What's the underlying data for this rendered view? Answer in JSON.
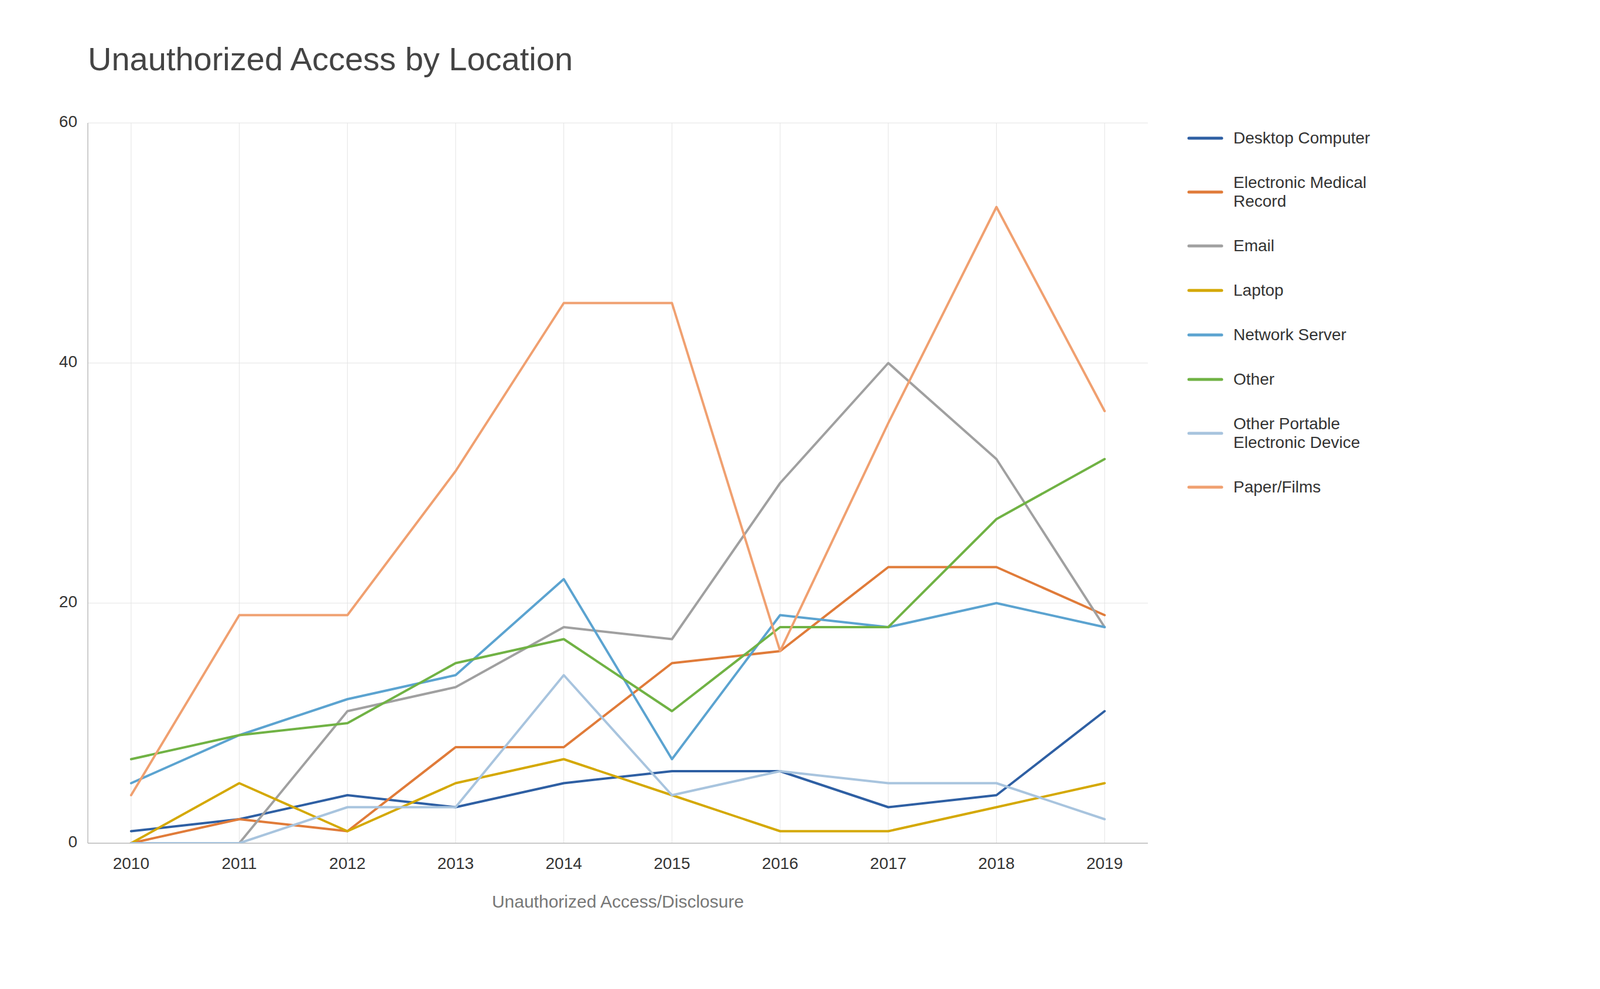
{
  "chart_data": {
    "type": "line",
    "title": "Unauthorized Access by Location",
    "xlabel": "Unauthorized Access/Disclosure",
    "x": [
      2010,
      2011,
      2012,
      2013,
      2014,
      2015,
      2016,
      2017,
      2018,
      2019
    ],
    "series": [
      {
        "name": "Desktop Computer",
        "color": "#2E5FA3",
        "values": [
          1,
          2,
          4,
          3,
          5,
          6,
          6,
          3,
          4,
          11
        ]
      },
      {
        "name": "Electronic Medical\nRecord",
        "color": "#E07B39",
        "values": [
          0,
          2,
          1,
          8,
          8,
          15,
          16,
          23,
          23,
          19
        ]
      },
      {
        "name": "Email",
        "color": "#A0A0A0",
        "values": [
          0,
          0,
          11,
          13,
          18,
          17,
          30,
          40,
          32,
          18
        ]
      },
      {
        "name": "Laptop",
        "color": "#D4A800",
        "values": [
          0,
          5,
          1,
          5,
          7,
          4,
          1,
          1,
          3,
          5
        ]
      },
      {
        "name": "Network Server",
        "color": "#5BA3D0",
        "values": [
          5,
          9,
          12,
          14,
          22,
          7,
          19,
          18,
          20,
          18
        ]
      },
      {
        "name": "Other",
        "color": "#70B244",
        "values": [
          7,
          9,
          10,
          15,
          17,
          11,
          18,
          18,
          27,
          32
        ]
      },
      {
        "name": "Other Portable\nElectronic Device",
        "color": "#A8C4DE",
        "values": [
          0,
          0,
          3,
          3,
          14,
          4,
          6,
          5,
          5,
          2
        ]
      },
      {
        "name": "Paper/Films",
        "color": "#F0A070",
        "values": [
          4,
          19,
          19,
          31,
          45,
          45,
          16,
          35,
          53,
          36
        ]
      }
    ],
    "xlim": [
      2009.6,
      2019.4
    ],
    "xticks": [
      2010,
      2011,
      2012,
      2013,
      2014,
      2015,
      2016,
      2017,
      2018,
      2019
    ],
    "ylim": [
      0,
      60
    ],
    "yticks": [
      0,
      20,
      40,
      60
    ],
    "grid": true,
    "legend": "right"
  }
}
